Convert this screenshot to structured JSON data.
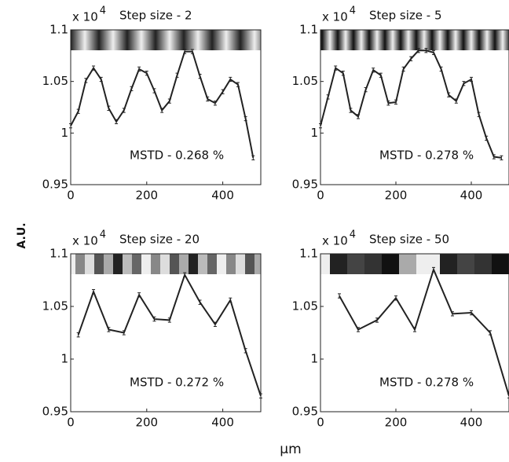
{
  "ylabel": "A.U.",
  "xlabel": "μm",
  "chart_data": [
    {
      "type": "line",
      "title": "Step size - 2",
      "multiplier": "x 10",
      "multiplier_exp": "4",
      "annotation": "MSTD - 0.268 %",
      "x": [
        0,
        20,
        40,
        60,
        80,
        100,
        120,
        140,
        160,
        180,
        200,
        220,
        240,
        260,
        280,
        300,
        320,
        340,
        360,
        380,
        400,
        420,
        440,
        460,
        480
      ],
      "values": [
        1.007,
        1.021,
        1.051,
        1.063,
        1.052,
        1.024,
        1.011,
        1.022,
        1.043,
        1.062,
        1.058,
        1.041,
        1.022,
        1.031,
        1.056,
        1.079,
        1.079,
        1.055,
        1.033,
        1.029,
        1.04,
        1.052,
        1.047,
        1.014,
        0.976
      ],
      "error": 0.002,
      "color": "#222222",
      "xlim": [
        0,
        500
      ],
      "ylim": [
        0.95,
        1.1
      ],
      "xticks": [
        0,
        200,
        400
      ],
      "yticks": [
        0.95,
        1,
        1.05,
        1.1
      ]
    },
    {
      "type": "line",
      "title": "Step size - 5",
      "multiplier": "x 10",
      "multiplier_exp": "4",
      "annotation": "MSTD - 0.278 %",
      "x": [
        0,
        20,
        40,
        60,
        80,
        100,
        120,
        140,
        160,
        180,
        200,
        220,
        240,
        260,
        280,
        300,
        320,
        340,
        360,
        380,
        400,
        420,
        440,
        460,
        480
      ],
      "values": [
        1.007,
        1.035,
        1.063,
        1.058,
        1.022,
        1.016,
        1.042,
        1.061,
        1.056,
        1.029,
        1.03,
        1.062,
        1.072,
        1.08,
        1.08,
        1.078,
        1.062,
        1.037,
        1.031,
        1.048,
        1.052,
        1.018,
        0.995,
        0.977,
        0.976
      ],
      "error": 0.002,
      "color": "#222222",
      "xlim": [
        0,
        500
      ],
      "ylim": [
        0.95,
        1.1
      ],
      "xticks": [
        0,
        200,
        400
      ],
      "yticks": [
        0.95,
        1,
        1.05,
        1.1
      ]
    },
    {
      "type": "line",
      "title": "Step size - 20",
      "multiplier": "x 10",
      "multiplier_exp": "4",
      "annotation": "MSTD - 0.272 %",
      "x": [
        20,
        60,
        100,
        140,
        180,
        220,
        260,
        300,
        340,
        380,
        420,
        460,
        500
      ],
      "values": [
        1.023,
        1.064,
        1.028,
        1.025,
        1.061,
        1.038,
        1.037,
        1.08,
        1.054,
        1.033,
        1.056,
        1.008,
        0.965
      ],
      "error": 0.002,
      "color": "#222222",
      "xlim": [
        0,
        500
      ],
      "ylim": [
        0.95,
        1.1
      ],
      "xticks": [
        0,
        200,
        400
      ],
      "yticks": [
        0.95,
        1,
        1.05,
        1.1
      ]
    },
    {
      "type": "line",
      "title": "Step size - 50",
      "multiplier": "x 10",
      "multiplier_exp": "4",
      "annotation": "MSTD - 0.278 %",
      "x": [
        50,
        100,
        150,
        200,
        250,
        300,
        350,
        400,
        450,
        500
      ],
      "values": [
        1.06,
        1.028,
        1.037,
        1.058,
        1.028,
        1.085,
        1.043,
        1.044,
        1.025,
        0.965
      ],
      "error": 0.002,
      "color": "#222222",
      "xlim": [
        0,
        500
      ],
      "ylim": [
        0.95,
        1.1
      ],
      "xticks": [
        0,
        200,
        400
      ],
      "yticks": [
        0.95,
        1,
        1.05,
        1.1
      ]
    }
  ]
}
